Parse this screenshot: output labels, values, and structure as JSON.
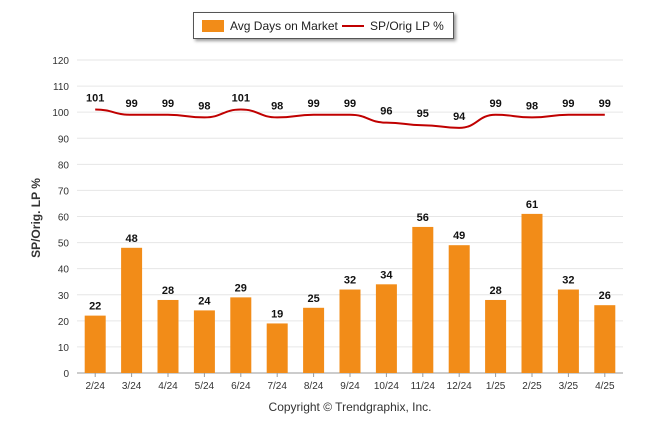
{
  "chart_data": {
    "type": "bar",
    "categories": [
      "2/24",
      "3/24",
      "4/24",
      "5/24",
      "6/24",
      "7/24",
      "8/24",
      "9/24",
      "10/24",
      "11/24",
      "12/24",
      "1/25",
      "2/25",
      "3/25",
      "4/25"
    ],
    "series": [
      {
        "name": "Avg Days on Market",
        "type": "bar",
        "color": "#f28c18",
        "values": [
          22,
          48,
          28,
          24,
          29,
          19,
          25,
          32,
          34,
          56,
          49,
          28,
          61,
          32,
          26
        ]
      },
      {
        "name": "SP/Orig LP %",
        "type": "line",
        "color": "#c00000",
        "values": [
          101,
          99,
          99,
          98,
          101,
          98,
          99,
          99,
          96,
          95,
          94,
          99,
          98,
          99,
          99
        ]
      }
    ],
    "ylabel": "SP/Orig. LP %",
    "ylim": [
      0,
      120
    ],
    "yticks": [
      0,
      10,
      20,
      30,
      40,
      50,
      60,
      70,
      80,
      90,
      100,
      110,
      120
    ],
    "grid": true,
    "legend_position": "top-center"
  },
  "legend": {
    "bar_label": "Avg Days on Market",
    "line_label": "SP/Orig LP %"
  },
  "footer": {
    "copyright": "Copyright © Trendgraphix, Inc."
  }
}
